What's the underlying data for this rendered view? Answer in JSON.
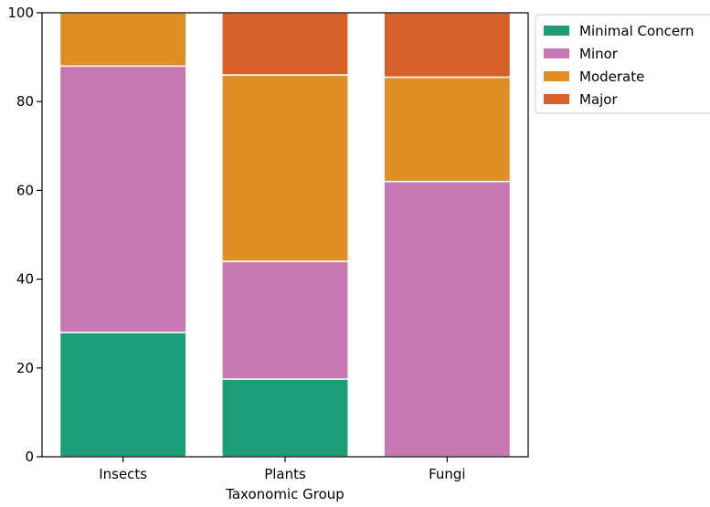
{
  "chart_data": {
    "type": "bar",
    "stacked": true,
    "categories": [
      "Insects",
      "Plants",
      "Fungi"
    ],
    "series": [
      {
        "name": "Minimal Concern",
        "color": "#1b9e77",
        "values": [
          28,
          17.5,
          0
        ]
      },
      {
        "name": "Minor",
        "color": "#c678b3",
        "values": [
          60,
          26.5,
          62
        ]
      },
      {
        "name": "Moderate",
        "color": "#e08f24",
        "values": [
          12,
          42,
          23.5
        ]
      },
      {
        "name": "Major",
        "color": "#d8612a",
        "values": [
          0,
          14,
          14.5
        ]
      }
    ],
    "title": "",
    "xlabel": "Taxonomic Group",
    "ylabel": "",
    "ylim": [
      0,
      100
    ],
    "yticks": [
      0,
      20,
      40,
      60,
      80,
      100
    ],
    "grid": false,
    "legend_position": "outside-top-right"
  }
}
